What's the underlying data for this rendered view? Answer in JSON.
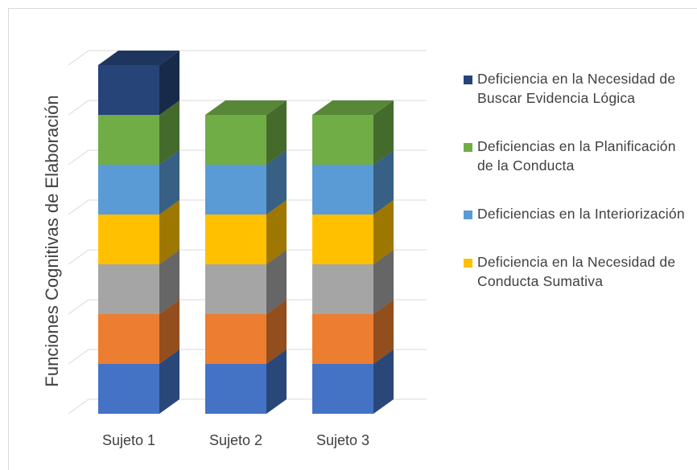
{
  "chart_data": {
    "type": "bar3d_stacked",
    "y_label": "Funciones Cognitivas de Elaboración",
    "categories": [
      "Sujeto 1",
      "Sujeto 2",
      "Sujeto 3"
    ],
    "series": [
      {
        "color": "#4472c4",
        "values": [
          1,
          1,
          1
        ]
      },
      {
        "color": "#ed7d31",
        "values": [
          1,
          1,
          1
        ]
      },
      {
        "color": "#a5a5a5",
        "values": [
          1,
          1,
          1
        ]
      },
      {
        "name": "Deficiencia en la Necesidad de Conducta Sumativa",
        "color": "#ffc000",
        "values": [
          1,
          1,
          1
        ]
      },
      {
        "name": "Deficiencias en la Interiorización",
        "color": "#5b9bd5",
        "values": [
          1,
          1,
          1
        ]
      },
      {
        "name": "Deficiencias en la Planificación de la Conducta",
        "color": "#70ad47",
        "values": [
          1,
          1,
          1
        ]
      },
      {
        "name": "Deficiencia en la Necesidad de Buscar Evidencia Lógica",
        "color": "#264478",
        "values": [
          1,
          0,
          0
        ]
      }
    ],
    "ylim": [
      0,
      7
    ],
    "yticks": [
      0,
      1,
      2,
      3,
      4,
      5,
      6,
      7
    ],
    "grid": true,
    "legend": "right"
  }
}
